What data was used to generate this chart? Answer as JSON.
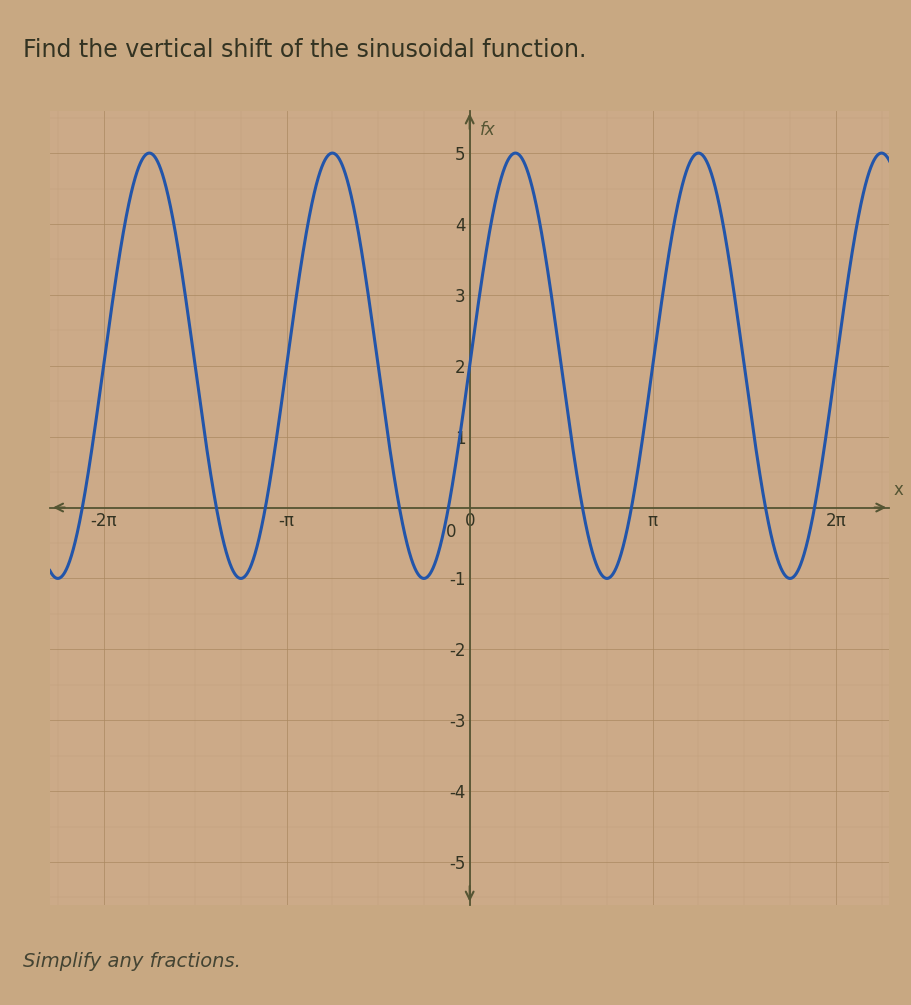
{
  "title": "Find the vertical shift of the sinusoidal function.",
  "subtitle": "Simplify any fractions.",
  "bg_color": "#C8A882",
  "plot_bg_color": "#CCAA88",
  "grid_major_color": "#AA8860",
  "grid_minor_color": "#BB9970",
  "curve_color": "#2255AA",
  "curve_lw": 2.2,
  "amplitude": 3,
  "frequency": 2,
  "vertical_shift": 2,
  "xlim": [
    -7.2,
    7.2
  ],
  "ylim": [
    -5.6,
    5.6
  ],
  "xticks": [
    -6.283185307,
    -3.141592654,
    0,
    3.141592654,
    6.283185307
  ],
  "xtick_labels": [
    "-2π",
    "-π",
    "0",
    "π",
    "2π"
  ],
  "yticks": [
    -5,
    -4,
    -3,
    -2,
    -1,
    1,
    2,
    3,
    4,
    5
  ],
  "ytick_labels": [
    "-5",
    "-4",
    "-3",
    "-2",
    "-1",
    "1",
    "2",
    "3",
    "4",
    "5"
  ],
  "ylabel": "fx",
  "xlabel": "x",
  "title_fontsize": 17,
  "subtitle_fontsize": 14,
  "tick_fontsize": 12,
  "axis_color": "#555533"
}
